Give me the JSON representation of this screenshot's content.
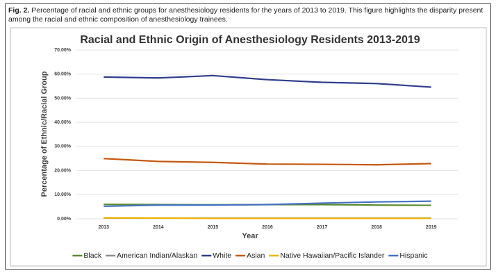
{
  "caption": {
    "label": "Fig. 2.",
    "text": "Percentage of racial and ethnic groups for anesthesiology residents for the years of 2013 to 2019. This figure highlights the disparity present among the racial and ethnic composition of anesthesiology trainees."
  },
  "chart_data": {
    "type": "line",
    "title": "Racial and Ethnic Origin of Anesthesiology Residents 2013-2019",
    "x_label": "Year",
    "y_label": "Percentage of Ethnic/Racial Group",
    "categories": [
      "2013",
      "2014",
      "2015",
      "2016",
      "2017",
      "2018",
      "2019"
    ],
    "series": [
      {
        "name": "Black",
        "color": "#5b8a2e",
        "values": [
          6.0,
          5.9,
          5.8,
          5.9,
          5.9,
          5.7,
          5.6
        ]
      },
      {
        "name": "American Indian/Alaskan",
        "color": "#8c8c8c",
        "values": [
          0.3,
          0.3,
          0.3,
          0.3,
          0.3,
          0.3,
          0.3
        ]
      },
      {
        "name": "White",
        "color": "#2e3f8f",
        "values": [
          58.8,
          58.4,
          59.4,
          57.7,
          56.6,
          56.1,
          54.6
        ]
      },
      {
        "name": "Asian",
        "color": "#c55a11",
        "values": [
          25.0,
          23.8,
          23.4,
          22.7,
          22.6,
          22.4,
          22.9
        ]
      },
      {
        "name": "Native Hawaiian/Pacific Islander",
        "color": "#f0b400",
        "values": [
          0.4,
          0.3,
          0.2,
          0.2,
          0.2,
          0.2,
          0.2
        ]
      },
      {
        "name": "Hispanic",
        "color": "#4472c4",
        "values": [
          5.2,
          5.7,
          5.7,
          5.9,
          6.5,
          7.0,
          7.3
        ]
      }
    ],
    "ylim": [
      0,
      70
    ],
    "yticks": [
      {
        "value": 0,
        "label": "0.00%"
      },
      {
        "value": 10,
        "label": "10.00%"
      },
      {
        "value": 20,
        "label": "20.00%"
      },
      {
        "value": 30,
        "label": "30.00%"
      },
      {
        "value": 40,
        "label": "40.00%"
      },
      {
        "value": 50,
        "label": "50.00%"
      },
      {
        "value": 60,
        "label": "60.00%"
      },
      {
        "value": 70,
        "label": "70.00%"
      }
    ],
    "grid": true,
    "legend": "bottom"
  }
}
